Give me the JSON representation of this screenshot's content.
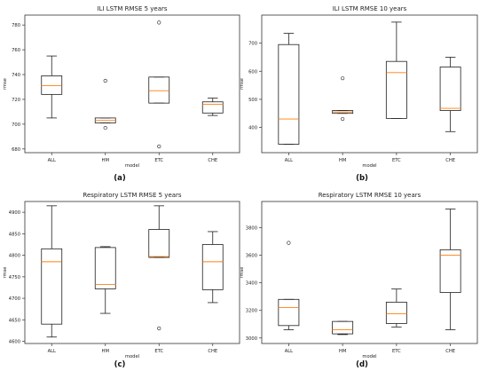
{
  "chart_data": [
    {
      "type": "box",
      "title": "ILI LSTM RMSE 5 years",
      "xlabel": "model",
      "ylabel": "rmse",
      "panel_label": "(a)",
      "categories": [
        "ALL",
        "HM",
        "ETC",
        "CHE"
      ],
      "ylim": [
        677,
        788
      ],
      "yticks": [
        680,
        700,
        720,
        740,
        760,
        780
      ],
      "boxes": [
        {
          "whislo": 705,
          "q1": 724,
          "med": 731,
          "q3": 739,
          "whishi": 755,
          "fliers": []
        },
        {
          "whislo": 701,
          "q1": 701,
          "med": 703,
          "q3": 705,
          "whishi": 705,
          "fliers": [
            735,
            697
          ]
        },
        {
          "whislo": 717,
          "q1": 717,
          "med": 727,
          "q3": 738,
          "whishi": 738,
          "fliers": [
            782,
            682
          ]
        },
        {
          "whislo": 707,
          "q1": 709,
          "med": 716,
          "q3": 718,
          "whishi": 721,
          "fliers": []
        }
      ]
    },
    {
      "type": "box",
      "title": "ILI LSTM RMSE 10 years",
      "xlabel": "model",
      "ylabel": "rmse",
      "panel_label": "(b)",
      "categories": [
        "ALL",
        "HM",
        "ETC",
        "CHE"
      ],
      "ylim": [
        310,
        800
      ],
      "yticks": [
        400,
        500,
        600,
        700
      ],
      "boxes": [
        {
          "whislo": 340,
          "q1": 340,
          "med": 430,
          "q3": 695,
          "whishi": 735,
          "fliers": []
        },
        {
          "whislo": 450,
          "q1": 450,
          "med": 455,
          "q3": 460,
          "whishi": 460,
          "fliers": [
            575,
            430
          ]
        },
        {
          "whislo": 432,
          "q1": 432,
          "med": 595,
          "q3": 635,
          "whishi": 775,
          "fliers": []
        },
        {
          "whislo": 385,
          "q1": 460,
          "med": 468,
          "q3": 615,
          "whishi": 650,
          "fliers": []
        }
      ]
    },
    {
      "type": "box",
      "title": "Respiratory LSTM RMSE 5 years",
      "xlabel": "model",
      "ylabel": "rmse",
      "panel_label": "(c)",
      "categories": [
        "ALL",
        "HM",
        "ETC",
        "CHE"
      ],
      "ylim": [
        4595,
        4925
      ],
      "yticks": [
        4600,
        4650,
        4700,
        4750,
        4800,
        4850,
        4900
      ],
      "boxes": [
        {
          "whislo": 4610,
          "q1": 4640,
          "med": 4785,
          "q3": 4815,
          "whishi": 4915,
          "fliers": []
        },
        {
          "whislo": 4665,
          "q1": 4722,
          "med": 4732,
          "q3": 4818,
          "whishi": 4820,
          "fliers": []
        },
        {
          "whislo": 4795,
          "q1": 4795,
          "med": 4797,
          "q3": 4860,
          "whishi": 4915,
          "fliers": [
            4630
          ]
        },
        {
          "whislo": 4690,
          "q1": 4720,
          "med": 4785,
          "q3": 4825,
          "whishi": 4855,
          "fliers": []
        }
      ]
    },
    {
      "type": "box",
      "title": "Respiratory LSTM RMSE 10 years",
      "xlabel": "model",
      "ylabel": "rmse",
      "panel_label": "(d)",
      "categories": [
        "ALL",
        "HM",
        "ETC",
        "CHE"
      ],
      "ylim": [
        2960,
        3990
      ],
      "yticks": [
        3000,
        3200,
        3400,
        3600,
        3800
      ],
      "boxes": [
        {
          "whislo": 3060,
          "q1": 3090,
          "med": 3220,
          "q3": 3280,
          "whishi": 3280,
          "fliers": [
            3690
          ]
        },
        {
          "whislo": 3025,
          "q1": 3030,
          "med": 3060,
          "q3": 3120,
          "whishi": 3120,
          "fliers": []
        },
        {
          "whislo": 3080,
          "q1": 3105,
          "med": 3175,
          "q3": 3260,
          "whishi": 3355,
          "fliers": []
        },
        {
          "whislo": 3060,
          "q1": 3330,
          "med": 3600,
          "q3": 3640,
          "whishi": 3935,
          "fliers": []
        }
      ]
    }
  ]
}
